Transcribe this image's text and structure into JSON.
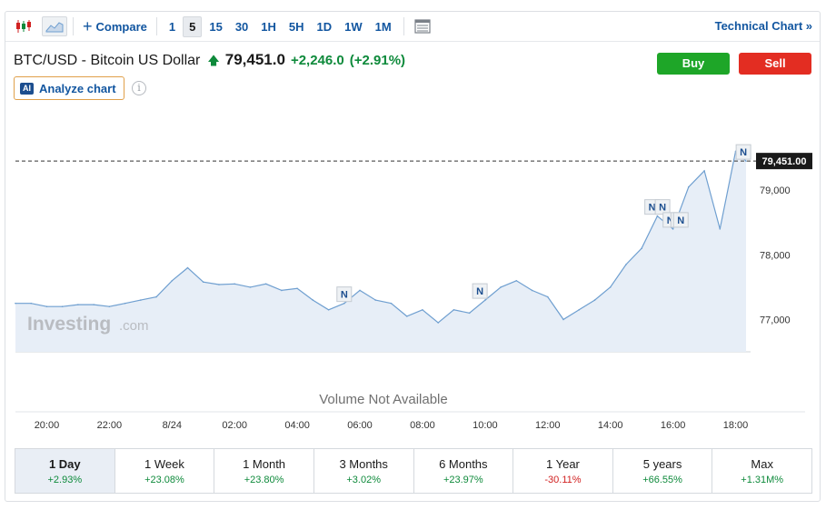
{
  "toolbar": {
    "compare_label": "Compare",
    "ranges": [
      "1",
      "5",
      "15",
      "30",
      "1H",
      "5H",
      "1D",
      "1W",
      "1M"
    ],
    "active_range": "5",
    "technical_label": "Technical Chart »"
  },
  "quote": {
    "name": "BTC/USD - Bitcoin US Dollar",
    "price": "79,451.0",
    "change": "+2,246.0",
    "change_pct": "(+2.91%)"
  },
  "actions": {
    "buy_label": "Buy",
    "sell_label": "Sell",
    "analyze_label": "Analyze chart",
    "ai_badge": "AI"
  },
  "info_icon_glyph": "i",
  "colors": {
    "up": "#0e8a3b",
    "down": "#d12121",
    "line": "#6f9fd0",
    "area": "#e7eef7",
    "buy": "#1ea628",
    "sell": "#e32d22"
  },
  "chart_data": {
    "type": "area",
    "x": [
      "19:00",
      "19:30",
      "20:00",
      "20:30",
      "21:00",
      "21:30",
      "22:00",
      "22:30",
      "23:00",
      "23:30",
      "00:00",
      "00:30",
      "01:00",
      "01:30",
      "02:00",
      "02:30",
      "03:00",
      "03:30",
      "04:00",
      "04:30",
      "05:00",
      "05:30",
      "06:00",
      "06:30",
      "07:00",
      "07:30",
      "08:00",
      "08:30",
      "09:00",
      "09:30",
      "10:00",
      "10:30",
      "11:00",
      "11:30",
      "12:00",
      "12:30",
      "13:00",
      "13:30",
      "14:00",
      "14:30",
      "15:00",
      "15:30",
      "16:00",
      "16:30",
      "17:00",
      "17:30",
      "18:00",
      "18:20"
    ],
    "values": [
      77250,
      77250,
      77200,
      77200,
      77230,
      77230,
      77200,
      77250,
      77300,
      77350,
      77600,
      77800,
      77580,
      77540,
      77550,
      77500,
      77550,
      77450,
      77480,
      77300,
      77150,
      77250,
      77450,
      77300,
      77250,
      77050,
      77150,
      76950,
      77150,
      77100,
      77300,
      77500,
      77600,
      77450,
      77350,
      77000,
      77150,
      77300,
      77500,
      77850,
      78100,
      78600,
      78400,
      79050,
      79300,
      78400,
      79600,
      79451
    ],
    "x_ticks": [
      "20:00",
      "22:00",
      "8/24",
      "02:00",
      "04:00",
      "06:00",
      "08:00",
      "10:00",
      "12:00",
      "14:00",
      "16:00",
      "18:00"
    ],
    "y_ticks": [
      "79,000",
      "78,000",
      "77,000"
    ],
    "ylim": [
      76500,
      80000
    ],
    "last_value_label": "79,451.00",
    "last_value": 79451,
    "news_markers": [
      {
        "x": "05:30",
        "label": "N"
      },
      {
        "x": "09:50",
        "label": "N"
      },
      {
        "x": "15:20",
        "label": "N"
      },
      {
        "x": "15:40",
        "label": "N"
      },
      {
        "x": "15:55",
        "label": "N"
      },
      {
        "x": "16:10",
        "label": "N"
      },
      {
        "x": "16:15",
        "label": "N"
      },
      {
        "x": "18:15",
        "label": "N"
      }
    ],
    "volume_text": "Volume Not Available",
    "watermark_brand": "Investing",
    "watermark_suffix": ".com",
    "grid": false
  },
  "periods": [
    {
      "label": "1 Day",
      "value": "+2.93%",
      "dir": "pos",
      "active": true
    },
    {
      "label": "1 Week",
      "value": "+23.08%",
      "dir": "pos",
      "active": false
    },
    {
      "label": "1 Month",
      "value": "+23.80%",
      "dir": "pos",
      "active": false
    },
    {
      "label": "3 Months",
      "value": "+3.02%",
      "dir": "pos",
      "active": false
    },
    {
      "label": "6 Months",
      "value": "+23.97%",
      "dir": "pos",
      "active": false
    },
    {
      "label": "1 Year",
      "value": "-30.11%",
      "dir": "neg",
      "active": false
    },
    {
      "label": "5 years",
      "value": "+66.55%",
      "dir": "pos",
      "active": false
    },
    {
      "label": "Max",
      "value": "+1.31M%",
      "dir": "pos",
      "active": false
    }
  ]
}
